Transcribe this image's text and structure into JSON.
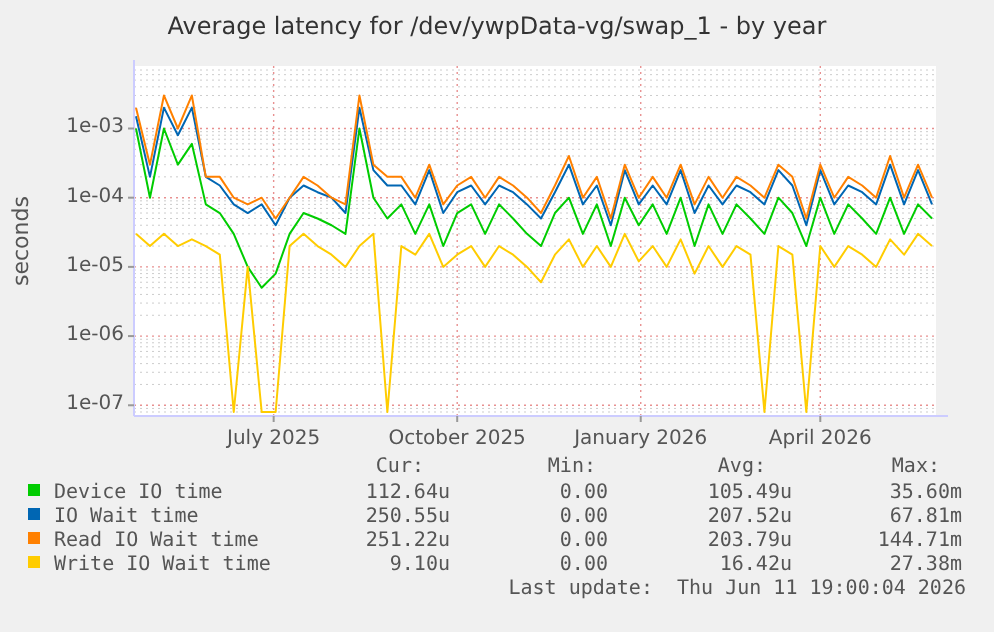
{
  "chart_data": {
    "type": "line",
    "title": "Average latency for /dev/ywpData-vg/swap_1 - by year",
    "ylabel": "seconds",
    "log": "y",
    "grid": true,
    "legend": "bottom",
    "marker": "none",
    "line_style": "solid",
    "xlim": [
      "2025-05-06",
      "2026-06-12"
    ],
    "xticks": [
      {
        "value": "2025-07-15",
        "label": "July 2025"
      },
      {
        "value": "2025-10-15",
        "label": "October 2025"
      },
      {
        "value": "2026-01-15",
        "label": "January 2026"
      },
      {
        "value": "2026-04-15",
        "label": "April 2026"
      }
    ],
    "ylim": [
      7e-08,
      0.008
    ],
    "yticks": [
      {
        "value": 1e-07,
        "label": "1e-07"
      },
      {
        "value": 1e-06,
        "label": "1e-06"
      },
      {
        "value": 1e-05,
        "label": "1e-05"
      },
      {
        "value": 0.0001,
        "label": "1e-04"
      },
      {
        "value": 0.001,
        "label": "1e-03"
      }
    ],
    "x": [
      "2025-05-07",
      "2025-05-14",
      "2025-05-21",
      "2025-05-28",
      "2025-06-04",
      "2025-06-11",
      "2025-06-18",
      "2025-06-25",
      "2025-07-02",
      "2025-07-09",
      "2025-07-16",
      "2025-07-23",
      "2025-07-30",
      "2025-08-06",
      "2025-08-13",
      "2025-08-20",
      "2025-08-27",
      "2025-09-03",
      "2025-09-10",
      "2025-09-17",
      "2025-09-24",
      "2025-10-01",
      "2025-10-08",
      "2025-10-15",
      "2025-10-22",
      "2025-10-29",
      "2025-11-05",
      "2025-11-12",
      "2025-11-19",
      "2025-11-26",
      "2025-12-03",
      "2025-12-10",
      "2025-12-17",
      "2025-12-24",
      "2025-12-31",
      "2026-01-07",
      "2026-01-14",
      "2026-01-21",
      "2026-01-28",
      "2026-02-04",
      "2026-02-11",
      "2026-02-18",
      "2026-02-25",
      "2026-03-04",
      "2026-03-11",
      "2026-03-18",
      "2026-03-25",
      "2026-04-01",
      "2026-04-08",
      "2026-04-15",
      "2026-04-22",
      "2026-04-29",
      "2026-05-06",
      "2026-05-13",
      "2026-05-20",
      "2026-05-27",
      "2026-06-03",
      "2026-06-10"
    ],
    "series": [
      {
        "name": "Device IO time",
        "color": "#00cc00",
        "values": [
          0.001,
          0.0001,
          0.001,
          0.0003,
          0.0006,
          8e-05,
          6e-05,
          3e-05,
          1e-05,
          5e-06,
          8e-06,
          3e-05,
          6e-05,
          5e-05,
          4e-05,
          3e-05,
          0.001,
          0.0001,
          5e-05,
          8e-05,
          3e-05,
          8e-05,
          2e-05,
          6e-05,
          8e-05,
          3e-05,
          8e-05,
          5e-05,
          3e-05,
          2e-05,
          6e-05,
          0.0001,
          3e-05,
          8e-05,
          2e-05,
          0.0001,
          4e-05,
          8e-05,
          3e-05,
          0.0001,
          2e-05,
          8e-05,
          3e-05,
          8e-05,
          5e-05,
          3e-05,
          0.0001,
          6e-05,
          2e-05,
          0.0001,
          3e-05,
          8e-05,
          5e-05,
          3e-05,
          0.0001,
          3e-05,
          8e-05,
          5e-05
        ]
      },
      {
        "name": "IO Wait time",
        "color": "#0066b3",
        "values": [
          0.0015,
          0.0002,
          0.002,
          0.0008,
          0.002,
          0.0002,
          0.00015,
          8e-05,
          6e-05,
          8e-05,
          4e-05,
          0.0001,
          0.00015,
          0.00012,
          0.0001,
          6e-05,
          0.002,
          0.00025,
          0.00015,
          0.00015,
          8e-05,
          0.00025,
          6e-05,
          0.00012,
          0.00015,
          8e-05,
          0.00015,
          0.00012,
          8e-05,
          5e-05,
          0.00012,
          0.0003,
          8e-05,
          0.00015,
          4e-05,
          0.00025,
          8e-05,
          0.00015,
          8e-05,
          0.00025,
          6e-05,
          0.00015,
          8e-05,
          0.00015,
          0.00012,
          8e-05,
          0.00025,
          0.00015,
          4e-05,
          0.00025,
          8e-05,
          0.00015,
          0.00012,
          8e-05,
          0.0003,
          8e-05,
          0.00025,
          8e-05
        ]
      },
      {
        "name": "Read IO Wait time",
        "color": "#ff8000",
        "values": [
          0.002,
          0.0003,
          0.003,
          0.001,
          0.003,
          0.0002,
          0.0002,
          0.0001,
          8e-05,
          0.0001,
          5e-05,
          0.0001,
          0.0002,
          0.00015,
          0.0001,
          8e-05,
          0.003,
          0.0003,
          0.0002,
          0.0002,
          0.0001,
          0.0003,
          8e-05,
          0.00015,
          0.0002,
          0.0001,
          0.0002,
          0.00015,
          0.0001,
          6e-05,
          0.00015,
          0.0004,
          0.0001,
          0.0002,
          5e-05,
          0.0003,
          0.0001,
          0.0002,
          0.0001,
          0.0003,
          8e-05,
          0.0002,
          0.0001,
          0.0002,
          0.00015,
          0.0001,
          0.0003,
          0.0002,
          5e-05,
          0.0003,
          0.0001,
          0.0002,
          0.00015,
          0.0001,
          0.0004,
          0.0001,
          0.0003,
          0.0001
        ]
      },
      {
        "name": "Write IO Wait time",
        "color": "#ffcc00",
        "values": [
          3e-05,
          2e-05,
          3e-05,
          2e-05,
          2.5e-05,
          2e-05,
          1.5e-05,
          8e-08,
          1e-05,
          8e-08,
          8e-08,
          2e-05,
          3e-05,
          2e-05,
          1.5e-05,
          1e-05,
          2e-05,
          3e-05,
          8e-08,
          2e-05,
          1.5e-05,
          3e-05,
          1e-05,
          1.5e-05,
          2e-05,
          1e-05,
          2e-05,
          1.5e-05,
          1e-05,
          6e-06,
          1.5e-05,
          2.5e-05,
          1e-05,
          2e-05,
          1e-05,
          3e-05,
          1.2e-05,
          2e-05,
          1e-05,
          2.5e-05,
          8e-06,
          2e-05,
          1e-05,
          2e-05,
          1.5e-05,
          8e-08,
          2e-05,
          1.5e-05,
          8e-08,
          2e-05,
          1e-05,
          2e-05,
          1.5e-05,
          1e-05,
          2.5e-05,
          1.5e-05,
          3e-05,
          2e-05
        ]
      }
    ],
    "annotations": [
      "Cur:",
      "Min:",
      "Avg:",
      "Max:",
      "112.64u",
      "0.00",
      "105.49u",
      "35.60m",
      "250.55u",
      "0.00",
      "207.52u",
      "67.81m",
      "251.22u",
      "0.00",
      "203.79u",
      "144.71m",
      "9.10u",
      "0.00",
      "16.42u",
      "27.38m",
      "Last update:  Thu Jun 11 19:00:04 2026"
    ]
  }
}
